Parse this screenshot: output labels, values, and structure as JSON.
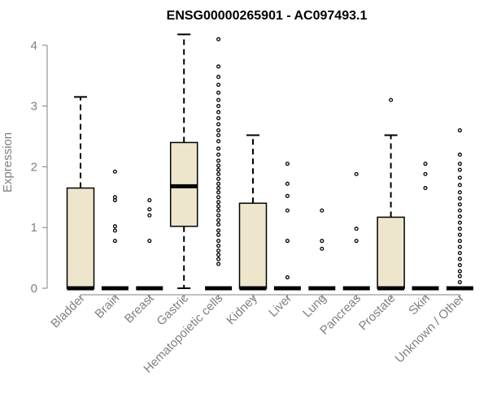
{
  "chart_data": {
    "type": "box",
    "title": "ENSG00000265901 - AC097493.1",
    "xlabel": "",
    "ylabel": "Expression",
    "ylim": [
      0,
      4.2
    ],
    "yticks": [
      0,
      1,
      2,
      3,
      4
    ],
    "grid": false,
    "categories": [
      "Bladder",
      "Brain",
      "Breast",
      "Gastric",
      "Hematopoietic cells",
      "Kidney",
      "Liver",
      "Lung",
      "Pancreas",
      "Prostate",
      "Skin",
      "Unknown / Other"
    ],
    "boxes": [
      {
        "category": "Bladder",
        "q1": 0,
        "median": 0,
        "q3": 1.65,
        "whisker_low": 0,
        "whisker_high": 3.15,
        "outliers": []
      },
      {
        "category": "Brain",
        "q1": 0,
        "median": 0,
        "q3": 0,
        "whisker_low": 0,
        "whisker_high": 0,
        "outliers": [
          0.78,
          0.95,
          1.02,
          1.45,
          1.5,
          1.92
        ]
      },
      {
        "category": "Breast",
        "q1": 0,
        "median": 0,
        "q3": 0,
        "whisker_low": 0,
        "whisker_high": 0,
        "outliers": [
          0.78,
          1.2,
          1.3,
          1.45
        ]
      },
      {
        "category": "Gastric",
        "q1": 1.02,
        "median": 1.68,
        "q3": 2.4,
        "whisker_low": 0,
        "whisker_high": 4.18,
        "outliers": []
      },
      {
        "category": "Hematopoietic cells",
        "q1": 0,
        "median": 0,
        "q3": 0,
        "whisker_low": 0,
        "whisker_high": 0,
        "outliers": [
          0.4,
          0.48,
          0.55,
          0.62,
          0.7,
          0.78,
          0.88,
          0.95,
          1.05,
          1.12,
          1.2,
          1.28,
          1.35,
          1.42,
          1.5,
          1.58,
          1.65,
          1.72,
          1.8,
          1.88,
          1.95,
          2.02,
          2.1,
          2.2,
          2.3,
          2.42,
          2.52,
          2.6,
          2.7,
          2.8,
          2.9,
          3.0,
          3.1,
          3.22,
          3.35,
          3.48,
          3.65,
          4.1
        ]
      },
      {
        "category": "Kidney",
        "q1": 0,
        "median": 0,
        "q3": 1.4,
        "whisker_low": 0,
        "whisker_high": 2.52,
        "outliers": []
      },
      {
        "category": "Liver",
        "q1": 0,
        "median": 0,
        "q3": 0,
        "whisker_low": 0,
        "whisker_high": 0,
        "outliers": [
          0.18,
          0.78,
          1.28,
          1.52,
          1.72,
          2.05
        ]
      },
      {
        "category": "Lung",
        "q1": 0,
        "median": 0,
        "q3": 0,
        "whisker_low": 0,
        "whisker_high": 0,
        "outliers": [
          0.65,
          0.78,
          1.28
        ]
      },
      {
        "category": "Pancreas",
        "q1": 0,
        "median": 0,
        "q3": 0,
        "whisker_low": 0,
        "whisker_high": 0,
        "outliers": [
          0.78,
          0.98,
          1.88
        ]
      },
      {
        "category": "Prostate",
        "q1": 0,
        "median": 0,
        "q3": 1.17,
        "whisker_low": 0,
        "whisker_high": 2.52,
        "outliers": [
          3.1
        ]
      },
      {
        "category": "Skin",
        "q1": 0,
        "median": 0,
        "q3": 0,
        "whisker_low": 0,
        "whisker_high": 0,
        "outliers": [
          1.65,
          1.88,
          2.05
        ]
      },
      {
        "category": "Unknown / Other",
        "q1": 0,
        "median": 0,
        "q3": 0,
        "whisker_low": 0,
        "whisker_high": 0,
        "outliers": [
          0.1,
          0.2,
          0.28,
          0.38,
          0.48,
          0.58,
          0.68,
          0.78,
          0.88,
          0.98,
          1.08,
          1.18,
          1.28,
          1.38,
          1.48,
          1.58,
          1.7,
          1.82,
          1.95,
          2.05,
          2.2,
          2.6
        ]
      }
    ],
    "colors": {
      "box_fill": "#ede6cd",
      "box_stroke": "#000000",
      "axis_text": "#808080",
      "title": "#000000"
    }
  }
}
